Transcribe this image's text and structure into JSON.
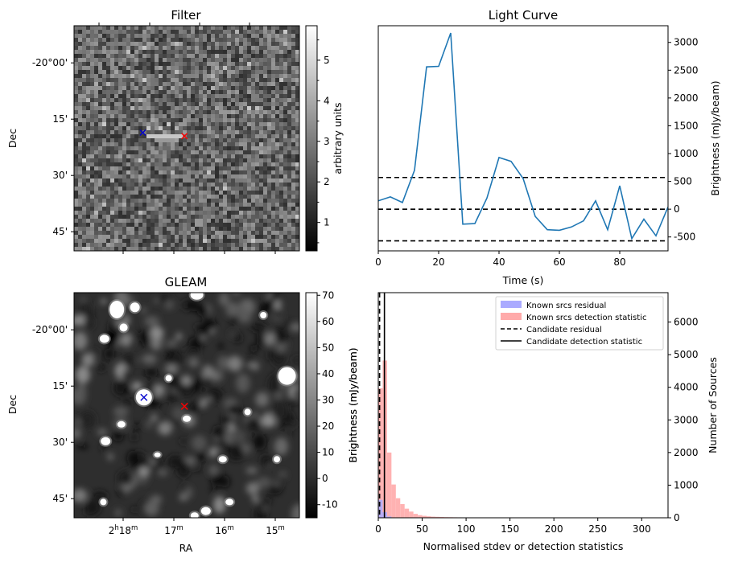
{
  "chart_data": [
    {
      "type": "heatmap",
      "title": "Filter",
      "ylabel": "Dec",
      "dec_ticks": [
        "-20°00'",
        "15'",
        "30'",
        "45'"
      ],
      "colorbar": {
        "label": "arbitrary units",
        "range": [
          0.3,
          5.85
        ],
        "ticks": [
          "1",
          "2",
          "3",
          "4",
          "5"
        ]
      },
      "markers": [
        {
          "name": "blue-x",
          "color": "#0000cc",
          "pos": [
            0.305,
            0.475
          ]
        },
        {
          "name": "red-x",
          "color": "#ff0000",
          "pos": [
            0.49,
            0.49
          ]
        }
      ]
    },
    {
      "type": "line",
      "title": "Light Curve",
      "xlabel": "Time (s)",
      "ylabel": "Brightness (mJy/beam)",
      "xlim": [
        0,
        96
      ],
      "ylim": [
        -750,
        3300
      ],
      "xticks": [
        "0",
        "20",
        "40",
        "60",
        "80"
      ],
      "yticks": [
        "-500",
        "0",
        "500",
        "1000",
        "1500",
        "2000",
        "2500",
        "3000"
      ],
      "line_color": "#1f77b4",
      "x": [
        0,
        4,
        8,
        12,
        16,
        20,
        24,
        28,
        32,
        36,
        40,
        44,
        48,
        52,
        56,
        60,
        64,
        68,
        72,
        76,
        80,
        84,
        88,
        92,
        96
      ],
      "y": [
        150,
        220,
        120,
        700,
        2560,
        2570,
        3170,
        -270,
        -260,
        200,
        930,
        860,
        550,
        -130,
        -370,
        -380,
        -320,
        -210,
        150,
        -370,
        420,
        -530,
        -180,
        -480,
        40
      ],
      "hlines": [
        570,
        0,
        -570
      ]
    },
    {
      "type": "heatmap",
      "title": "GLEAM",
      "xlabel": "RA",
      "ylabel": "Dec",
      "ra_ticks": [
        {
          "main": "2",
          "sup1": "h",
          "mid": "18",
          "sup2": "m"
        },
        {
          "main": "17",
          "sup1": "m",
          "mid": "",
          "sup2": ""
        },
        {
          "main": "16",
          "sup1": "m",
          "mid": "",
          "sup2": ""
        },
        {
          "main": "15",
          "sup1": "m",
          "mid": "",
          "sup2": ""
        }
      ],
      "dec_ticks": [
        "-20°00'",
        "15'",
        "30'",
        "45'"
      ],
      "colorbar": {
        "label": "Brightness (mJy/beam)",
        "range": [
          -15,
          71
        ],
        "ticks": [
          "-10",
          "0",
          "10",
          "20",
          "30",
          "40",
          "50",
          "60",
          "70"
        ]
      },
      "markers": [
        {
          "name": "blue-x",
          "color": "#0000cc",
          "pos": [
            0.31,
            0.465
          ]
        },
        {
          "name": "red-x",
          "color": "#ff0000",
          "pos": [
            0.49,
            0.505
          ]
        }
      ]
    },
    {
      "type": "bar",
      "title": "",
      "xlabel": "Normalised stdev or detection statistics",
      "ylabel_left": "Brightness (mJy/beam)",
      "ylabel_right": "Number of Sources",
      "xlim": [
        0,
        330
      ],
      "ylim": [
        0,
        6900
      ],
      "xticks": [
        "0",
        "50",
        "100",
        "150",
        "200",
        "250",
        "300"
      ],
      "yticks": [
        "0",
        "1000",
        "2000",
        "3000",
        "4000",
        "5000",
        "6000"
      ],
      "bin_width": 5,
      "series": [
        {
          "name": "Known srcs residual",
          "color": "#aaaaff",
          "bins": [
            0,
            5,
            10,
            15
          ],
          "values": [
            550,
            170,
            40,
            10
          ]
        },
        {
          "name": "Known srcs detection statistic",
          "color": "#ffaaaa",
          "bins": [
            0,
            5,
            10,
            15,
            20,
            25,
            30,
            35,
            40,
            45,
            50,
            55,
            60,
            65,
            70,
            75,
            80,
            85,
            90,
            95,
            100,
            105,
            110,
            115,
            120,
            125,
            130,
            135,
            140,
            145,
            150,
            155,
            160,
            165,
            170,
            175,
            180,
            185,
            190,
            195,
            200,
            205,
            210,
            215,
            220,
            225,
            230,
            235,
            240,
            245,
            250,
            255,
            260,
            265,
            270,
            275,
            280,
            285,
            290,
            295,
            300,
            305,
            310,
            315,
            320
          ],
          "values": [
            3970,
            4820,
            2000,
            1020,
            600,
            420,
            280,
            190,
            120,
            80,
            60,
            45,
            35,
            30,
            25,
            20,
            18,
            15,
            13,
            12,
            10,
            9,
            8,
            8,
            7,
            6,
            5,
            5,
            5,
            4,
            4,
            4,
            3,
            3,
            3,
            3,
            3,
            2,
            2,
            2,
            2,
            2,
            2,
            2,
            2,
            2,
            2,
            1,
            1,
            1,
            1,
            1,
            1,
            1,
            1,
            1,
            1,
            1,
            1,
            1,
            1,
            1,
            1,
            1,
            1
          ]
        }
      ],
      "vlines": [
        {
          "name": "Candidate residual",
          "x": 1.5,
          "style": "dashed"
        },
        {
          "name": "Candidate detection statistic",
          "x": 7,
          "style": "solid"
        }
      ],
      "legend": [
        "Known srcs residual",
        "Known srcs detection statistic",
        "Candidate residual",
        "Candidate detection statistic"
      ],
      "legend_position": "top-right"
    }
  ]
}
